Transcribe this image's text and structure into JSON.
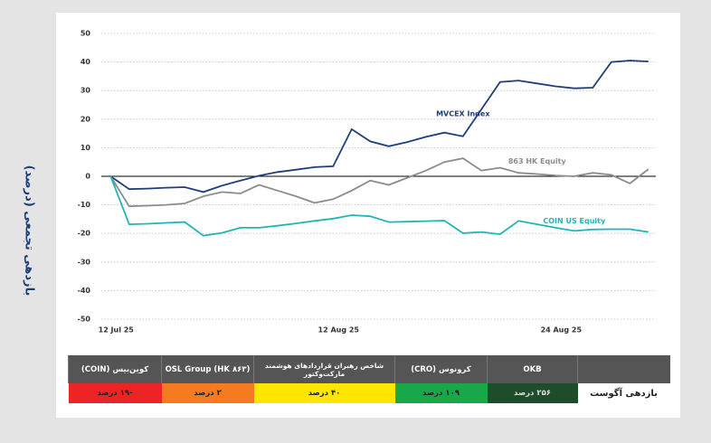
{
  "chart_data": {
    "type": "line",
    "y_label": "بازدهی تجمعی (درصد)",
    "x": [
      0,
      1,
      2,
      3,
      4,
      5,
      6,
      7,
      8,
      9,
      10,
      11,
      12,
      13,
      14,
      15,
      16,
      17,
      18,
      19,
      20,
      21,
      22,
      23,
      24,
      25,
      26,
      27,
      28,
      29
    ],
    "xlim": [
      -0.5,
      29.4
    ],
    "xticks": [
      {
        "value": 0,
        "label": "12 Jul 25"
      },
      {
        "value": 12,
        "label": "12 Aug 25"
      },
      {
        "value": 24,
        "label": "24 Aug 25"
      }
    ],
    "ylim": [
      -50,
      50
    ],
    "yticks": [
      -50,
      -40,
      -30,
      -20,
      -10,
      0,
      10,
      20,
      30,
      40,
      50
    ],
    "grid": true,
    "series": [
      {
        "name": "MVCEX Index",
        "color": "#1f3e7a",
        "values": [
          0,
          -4.5,
          -4.3,
          -4,
          -3.8,
          -5.5,
          -3.3,
          -1.5,
          0.2,
          1.5,
          2.3,
          3.2,
          3.5,
          16.5,
          12.2,
          10.5,
          12,
          13.8,
          15.3,
          14,
          23.5,
          33,
          33.5,
          32.5,
          31.5,
          30.8,
          31,
          40,
          40.5,
          40.2
        ]
      },
      {
        "name": "863 HK Equity",
        "color": "#8c8c8c",
        "values": [
          0,
          -10.5,
          -10.3,
          -10,
          -9.5,
          -7,
          -5.5,
          -6,
          -3,
          -5,
          -7,
          -9.3,
          -8,
          -5,
          -1.5,
          -3,
          -0.5,
          2,
          5,
          6.3,
          2,
          3,
          1.2,
          0.8,
          0.3,
          0,
          1.2,
          0.5,
          -2.5,
          2.5
        ]
      },
      {
        "name": "COIN US Equity",
        "color": "#22b5b5",
        "values": [
          0,
          -16.8,
          -16.6,
          -16.3,
          -16,
          -20.8,
          -19.8,
          -18,
          -18,
          -17.3,
          -16.5,
          -15.6,
          -14.8,
          -13.6,
          -14,
          -16,
          -15.9,
          -15.7,
          -15.5,
          -19.9,
          -19.5,
          -20.3,
          -15.6,
          -16.8,
          -18,
          -19.1,
          -18.6,
          -18.5,
          -18.5,
          -19.5
        ]
      }
    ]
  },
  "table": {
    "columns": [
      "OKB",
      "کرونوس (CRO)",
      "شاخص رهبران قراردادهای هوشمند مارکت‌وکتور",
      "OSL Group (HK ۸۶۳)",
      "کوین‌بیس (COIN)"
    ],
    "row_label": "بازدهی آگوست",
    "values": [
      "۲۵۶ درصد",
      "۱۰۹ درصد",
      "۴۰ درصد",
      "۲ درصد",
      "-۱۹ درصد"
    ]
  }
}
